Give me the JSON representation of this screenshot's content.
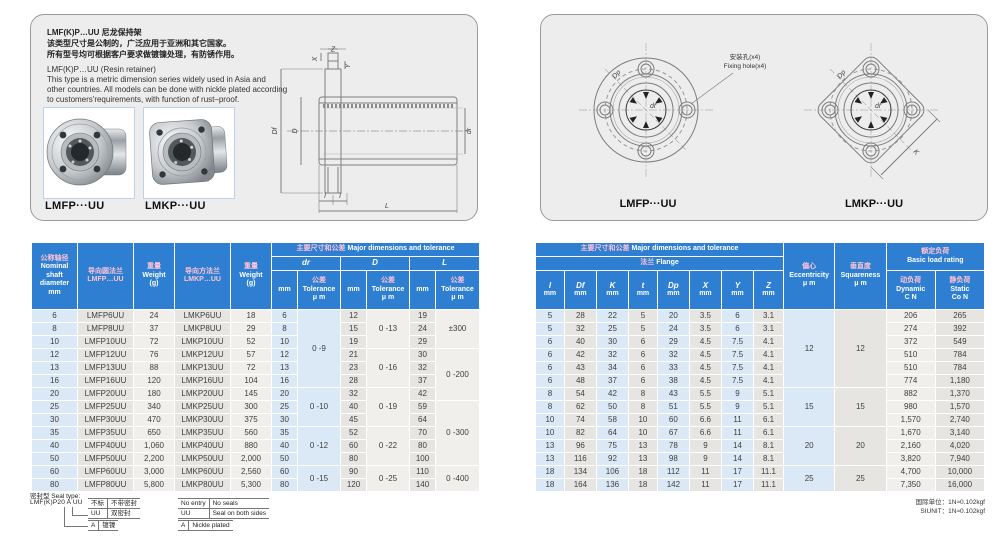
{
  "colors": {
    "header_blue": "#2e7fd2",
    "header_pink": "#ffc3d6",
    "col_blue": "#dbe8f5",
    "col_grey": "#e6e5e2",
    "col_light": "#f0efec",
    "panel_bg": "#ededed",
    "panel_border": "#9a9a9a"
  },
  "intro": {
    "cn_lines": [
      "LMF(K)P…UU 尼龙保持架",
      "该类型尺寸是公制的，广泛应用于亚洲和其它国家。",
      "所有型号均可根据客户要求做镀镍处理，有防锈作用。"
    ],
    "en_lines": [
      "LMF(K)P…UU (Resin retainer)",
      "This type is a metric dimension series widely used in Asia and",
      "other countries. All models can be done with nickle plated according",
      "to customers'requirements, with function of rust–proof."
    ]
  },
  "photos": {
    "left_label": "LMFP···UU",
    "right_label": "LMKP···UU"
  },
  "views": {
    "left_label": "LMFP···UU",
    "right_label": "LMKP···UU",
    "fixing_cn": "安装孔(x4)",
    "fixing_en": "Fixing hole(x4)"
  },
  "dims": {
    "z": "Z",
    "x": "X",
    "y": "Y",
    "df": "Df",
    "d": "D",
    "dr": "dr",
    "l": "l",
    "L": "L",
    "dp": "Dp",
    "k": "K"
  },
  "left_table": {
    "band_cn": "主要尺寸和公差",
    "band_en": "Major dimensions and tolerance",
    "col1_cn": "公称轴径",
    "col1_en": "Nominal\nshaft\ndiameter\nmm",
    "col2_cn": "导向圆法兰",
    "col2_model": "LMFP…UU",
    "col3_cn": "重量",
    "col3_en": "Weight\n(g)",
    "col4_cn": "导向方法兰",
    "col4_model": "LMKP…UU",
    "col5_cn": "重量",
    "col5_en": "Weight\n(g)",
    "dim_headers": [
      "dr",
      "D",
      "L"
    ],
    "mm_label": "mm",
    "tol_cn": "公差",
    "tol_en": "Tolerance",
    "tol_unit": "μ m",
    "rows": [
      [
        "6",
        "LMFP6UU",
        "24",
        "LMKP6UU",
        "18",
        "6",
        "12",
        "19"
      ],
      [
        "8",
        "LMFP8UU",
        "37",
        "LMKP8UU",
        "29",
        "8",
        "15",
        "24"
      ],
      [
        "10",
        "LMFP10UU",
        "72",
        "LMKP10UU",
        "52",
        "10",
        "19",
        "29"
      ],
      [
        "12",
        "LMFP12UU",
        "76",
        "LMKP12UU",
        "57",
        "12",
        "21",
        "30"
      ],
      [
        "13",
        "LMFP13UU",
        "88",
        "LMKP13UU",
        "72",
        "13",
        "23",
        "32"
      ],
      [
        "16",
        "LMFP16UU",
        "120",
        "LMKP16UU",
        "104",
        "16",
        "28",
        "37"
      ],
      [
        "20",
        "LMFP20UU",
        "180",
        "LMKP20UU",
        "145",
        "20",
        "32",
        "42"
      ],
      [
        "25",
        "LMFP25UU",
        "340",
        "LMKP25UU",
        "300",
        "25",
        "40",
        "59"
      ],
      [
        "30",
        "LMFP30UU",
        "470",
        "LMKP30UU",
        "375",
        "30",
        "45",
        "64"
      ],
      [
        "35",
        "LMFP35UU",
        "650",
        "LMKP35UU",
        "560",
        "35",
        "52",
        "70"
      ],
      [
        "40",
        "LMFP40UU",
        "1,060",
        "LMKP40UU",
        "880",
        "40",
        "60",
        "80"
      ],
      [
        "50",
        "LMFP50UU",
        "2,200",
        "LMKP50UU",
        "2,000",
        "50",
        "80",
        "100"
      ],
      [
        "60",
        "LMFP60UU",
        "3,000",
        "LMKP60UU",
        "2,560",
        "60",
        "90",
        "110"
      ],
      [
        "80",
        "LMFP80UU",
        "5,800",
        "LMKP80UU",
        "5,300",
        "80",
        "120",
        "140"
      ]
    ],
    "tol_groups": {
      "dr": [
        {
          "start": 0,
          "span": 6,
          "text": "0\n-9"
        },
        {
          "start": 6,
          "span": 3,
          "text": "0\n-10"
        },
        {
          "start": 9,
          "span": 3,
          "text": "0\n-12"
        },
        {
          "start": 12,
          "span": 2,
          "text": "0\n-15"
        }
      ],
      "D": [
        {
          "start": 0,
          "span": 3,
          "text": "0\n-13"
        },
        {
          "start": 3,
          "span": 3,
          "text": "0\n-16"
        },
        {
          "start": 6,
          "span": 3,
          "text": "0\n-19"
        },
        {
          "start": 9,
          "span": 3,
          "text": "0\n-22"
        },
        {
          "start": 12,
          "span": 2,
          "text": "0\n-25"
        }
      ],
      "L": [
        {
          "start": 0,
          "span": 3,
          "text": "±300"
        },
        {
          "start": 3,
          "span": 4,
          "text": "0\n-200"
        },
        {
          "start": 7,
          "span": 5,
          "text": "0\n-300"
        },
        {
          "start": 12,
          "span": 2,
          "text": "0\n-400"
        }
      ]
    }
  },
  "right_table": {
    "band_cn": "主要尺寸和公差",
    "band_en": "Major dimensions and tolerance",
    "flange_cn": "法兰",
    "flange_en": "Flange",
    "cols": [
      {
        "sym": "l",
        "unit": "mm"
      },
      {
        "sym": "Df",
        "unit": "mm"
      },
      {
        "sym": "K",
        "unit": "mm"
      },
      {
        "sym": "t",
        "unit": "mm"
      },
      {
        "sym": "Dp",
        "unit": "mm"
      },
      {
        "sym": "X",
        "unit": "mm"
      },
      {
        "sym": "Y",
        "unit": "mm"
      },
      {
        "sym": "Z",
        "unit": "mm"
      }
    ],
    "ecc_cn": "偏心",
    "ecc_en": "Eccentricity",
    "ecc_unit": "μ m",
    "sq_cn": "垂直度",
    "sq_en": "Squareness",
    "sq_unit": "μ m",
    "load_cn": "额定负荷",
    "load_en": "Basic load rating",
    "dyn_cn": "动负荷",
    "dyn_en": "Dynamic",
    "dyn_unit": "C N",
    "stat_cn": "静负荷",
    "stat_en": "Static",
    "stat_unit": "Co N",
    "rows": [
      [
        "5",
        "28",
        "22",
        "5",
        "20",
        "3.5",
        "6",
        "3.1",
        "206",
        "265"
      ],
      [
        "5",
        "32",
        "25",
        "5",
        "24",
        "3.5",
        "6",
        "3.1",
        "274",
        "392"
      ],
      [
        "6",
        "40",
        "30",
        "6",
        "29",
        "4.5",
        "7.5",
        "4.1",
        "372",
        "549"
      ],
      [
        "6",
        "42",
        "32",
        "6",
        "32",
        "4.5",
        "7.5",
        "4.1",
        "510",
        "784"
      ],
      [
        "6",
        "43",
        "34",
        "6",
        "33",
        "4.5",
        "7.5",
        "4.1",
        "510",
        "784"
      ],
      [
        "6",
        "48",
        "37",
        "6",
        "38",
        "4.5",
        "7.5",
        "4.1",
        "774",
        "1,180"
      ],
      [
        "8",
        "54",
        "42",
        "8",
        "43",
        "5.5",
        "9",
        "5.1",
        "882",
        "1,370"
      ],
      [
        "8",
        "62",
        "50",
        "8",
        "51",
        "5.5",
        "9",
        "5.1",
        "980",
        "1,570"
      ],
      [
        "10",
        "74",
        "58",
        "10",
        "60",
        "6.6",
        "11",
        "6.1",
        "1,570",
        "2,740"
      ],
      [
        "10",
        "82",
        "64",
        "10",
        "67",
        "6.6",
        "11",
        "6.1",
        "1,670",
        "3,140"
      ],
      [
        "13",
        "96",
        "75",
        "13",
        "78",
        "9",
        "14",
        "8.1",
        "2,160",
        "4,020"
      ],
      [
        "13",
        "116",
        "92",
        "13",
        "98",
        "9",
        "14",
        "8.1",
        "3,820",
        "7,940"
      ],
      [
        "18",
        "134",
        "106",
        "18",
        "112",
        "11",
        "17",
        "11.1",
        "4,700",
        "10,000"
      ],
      [
        "18",
        "164",
        "136",
        "18",
        "142",
        "11",
        "17",
        "11.1",
        "7,350",
        "16,000"
      ]
    ],
    "acc_groups": [
      {
        "start": 0,
        "span": 6,
        "ecc": "12",
        "sq": "12"
      },
      {
        "start": 6,
        "span": 3,
        "ecc": "15",
        "sq": "15"
      },
      {
        "start": 9,
        "span": 3,
        "ecc": "20",
        "sq": "20"
      },
      {
        "start": 12,
        "span": 2,
        "ecc": "25",
        "sq": "25"
      }
    ]
  },
  "seal": {
    "title": "密封型 Seal type:",
    "code": "LMF(K)P20 A UU",
    "cn_rows": [
      [
        "不标",
        "不带密封"
      ],
      [
        "UU",
        "双密封"
      ]
    ],
    "cn_row3": [
      "A",
      "镀镍"
    ],
    "en_rows": [
      [
        "No entry",
        "No seals"
      ],
      [
        "UU",
        "Seal on both sides"
      ]
    ],
    "en_row3": [
      "A",
      "Nickle plated"
    ]
  },
  "si_note": {
    "line1": "国际单位：1N≈0.102kgf",
    "line2": "SIUNIT：1N≈0.102kgf"
  }
}
